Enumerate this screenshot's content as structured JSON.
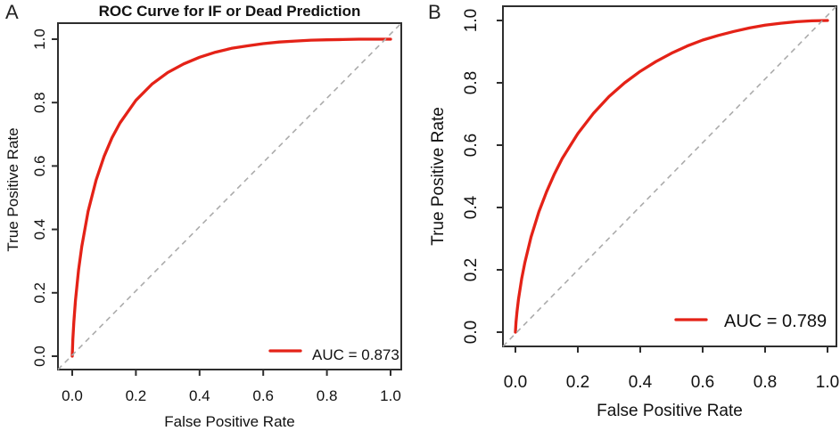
{
  "figure": {
    "background": "#ffffff",
    "accent_red": "#e42217",
    "diagonal_gray": "#ababab",
    "axis_color": "#2e2e2e",
    "text_color": "#111111"
  },
  "chart_data": [
    {
      "type": "line",
      "panel_label": "A",
      "title": "ROC Curve for IF or Dead Prediction",
      "xlabel": "False Positive Rate",
      "ylabel": "True Positive Rate",
      "xlim": [
        0,
        1
      ],
      "ylim": [
        0,
        1
      ],
      "grid": false,
      "x_ticks": [
        "0.0",
        "0.2",
        "0.4",
        "0.6",
        "0.8",
        "1.0"
      ],
      "y_ticks": [
        "0.0",
        "0.2",
        "0.4",
        "0.6",
        "0.8",
        "1.0"
      ],
      "auc": 0.873,
      "legend": {
        "label": "AUC = 0.873",
        "position": "bottom-right",
        "color": "#e42217"
      },
      "series": [
        {
          "name": "ROC curve",
          "color": "#e42217",
          "x": [
            0,
            0.001,
            0.002,
            0.005,
            0.01,
            0.02,
            0.03,
            0.05,
            0.075,
            0.1,
            0.125,
            0.15,
            0.2,
            0.25,
            0.3,
            0.35,
            0.4,
            0.45,
            0.5,
            0.55,
            0.6,
            0.65,
            0.7,
            0.75,
            0.8,
            0.85,
            0.9,
            0.95,
            1
          ],
          "y": [
            0,
            0.031,
            0.054,
            0.107,
            0.175,
            0.272,
            0.346,
            0.457,
            0.556,
            0.63,
            0.689,
            0.736,
            0.807,
            0.858,
            0.895,
            0.922,
            0.943,
            0.959,
            0.971,
            0.979,
            0.986,
            0.991,
            0.994,
            0.997,
            0.998,
            0.999,
            1,
            1,
            1
          ]
        },
        {
          "name": "chance diagonal",
          "color": "#ababab",
          "dashed": true,
          "x": [
            0,
            1
          ],
          "y": [
            0,
            1
          ]
        }
      ]
    },
    {
      "type": "line",
      "panel_label": "B",
      "title": "",
      "xlabel": "False Positive Rate",
      "ylabel": "True Positive Rate",
      "xlim": [
        0,
        1
      ],
      "ylim": [
        0,
        1
      ],
      "grid": false,
      "x_ticks": [
        "0.0",
        "0.2",
        "0.4",
        "0.6",
        "0.8",
        "1.0"
      ],
      "y_ticks": [
        "0.0",
        "0.2",
        "0.4",
        "0.6",
        "0.8",
        "1.0"
      ],
      "auc": 0.789,
      "legend": {
        "label": "AUC = 0.789",
        "position": "bottom-right",
        "color": "#e42217"
      },
      "series": [
        {
          "name": "ROC curve",
          "color": "#e42217",
          "x": [
            0,
            0.001,
            0.002,
            0.005,
            0.01,
            0.02,
            0.03,
            0.05,
            0.075,
            0.1,
            0.125,
            0.15,
            0.2,
            0.25,
            0.3,
            0.35,
            0.4,
            0.45,
            0.5,
            0.55,
            0.6,
            0.65,
            0.7,
            0.75,
            0.8,
            0.85,
            0.9,
            0.95,
            1
          ],
          "y": [
            0,
            0.02,
            0.033,
            0.066,
            0.107,
            0.171,
            0.222,
            0.305,
            0.386,
            0.451,
            0.508,
            0.557,
            0.637,
            0.702,
            0.756,
            0.8,
            0.837,
            0.868,
            0.895,
            0.918,
            0.937,
            0.952,
            0.965,
            0.976,
            0.985,
            0.991,
            0.996,
            0.999,
            1
          ]
        },
        {
          "name": "chance diagonal",
          "color": "#ababab",
          "dashed": true,
          "x": [
            0,
            1
          ],
          "y": [
            0,
            1
          ]
        }
      ]
    }
  ]
}
